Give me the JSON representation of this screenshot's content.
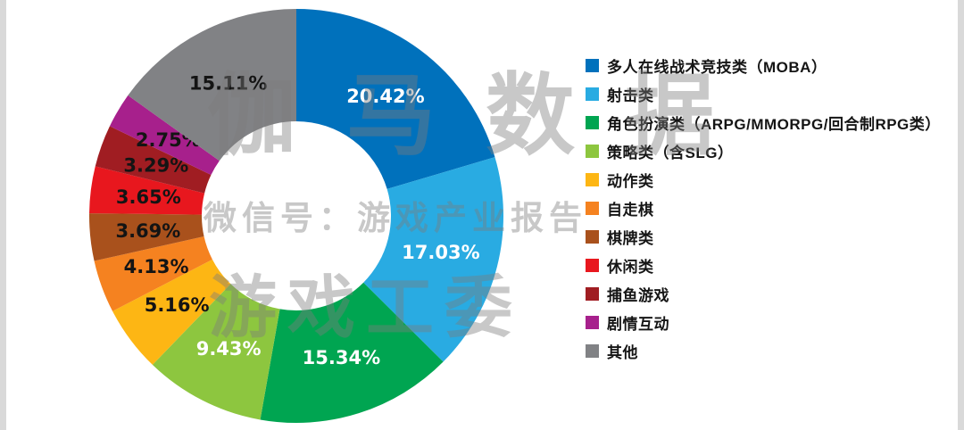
{
  "page": {
    "background": "#ffffff",
    "edge_strip_color": "#d9d9d9"
  },
  "watermark": {
    "line1": "伽马数据",
    "line2": "微信号：游戏产业报告",
    "line3": "游戏工委"
  },
  "chart_data": {
    "type": "pie",
    "style": "donut",
    "start_angle_deg": 0,
    "direction": "clockwise",
    "donut_hole_color": "#ffffff",
    "legend_position": "right",
    "slices": [
      {
        "label": "多人在线战术竞技类（MOBA）",
        "value": 20.42,
        "display": "20.42%",
        "color": "#0071BC",
        "label_color": "#ffffff"
      },
      {
        "label": "射击类",
        "value": 17.03,
        "display": "17.03%",
        "color": "#29ABE2",
        "label_color": "#ffffff"
      },
      {
        "label": "角色扮演类（ARPG/MMORPG/回合制RPG类）",
        "value": 15.34,
        "display": "15.34%",
        "color": "#00A551",
        "label_color": "#ffffff"
      },
      {
        "label": "策略类（含SLG）",
        "value": 9.43,
        "display": "9.43%",
        "color": "#8DC63F",
        "label_color": "#ffffff"
      },
      {
        "label": "动作类",
        "value": 5.16,
        "display": "5.16%",
        "color": "#FDB614",
        "label_color": "#141414"
      },
      {
        "label": "自走棋",
        "value": 4.13,
        "display": "4.13%",
        "color": "#F58220",
        "label_color": "#141414"
      },
      {
        "label": "棋牌类",
        "value": 3.69,
        "display": "3.69%",
        "color": "#A9511C",
        "label_color": "#141414"
      },
      {
        "label": "休闲类",
        "value": 3.65,
        "display": "3.65%",
        "color": "#E8171E",
        "label_color": "#141414"
      },
      {
        "label": "捕鱼游戏",
        "value": 3.29,
        "display": "3.29%",
        "color": "#A01D22",
        "label_color": "#141414"
      },
      {
        "label": "剧情互动",
        "value": 2.75,
        "display": "2.75%",
        "color": "#A7208C",
        "label_color": "#141414"
      },
      {
        "label": "其他",
        "value": 15.11,
        "display": "15.11%",
        "color": "#818285",
        "label_color": "#141414"
      }
    ]
  }
}
